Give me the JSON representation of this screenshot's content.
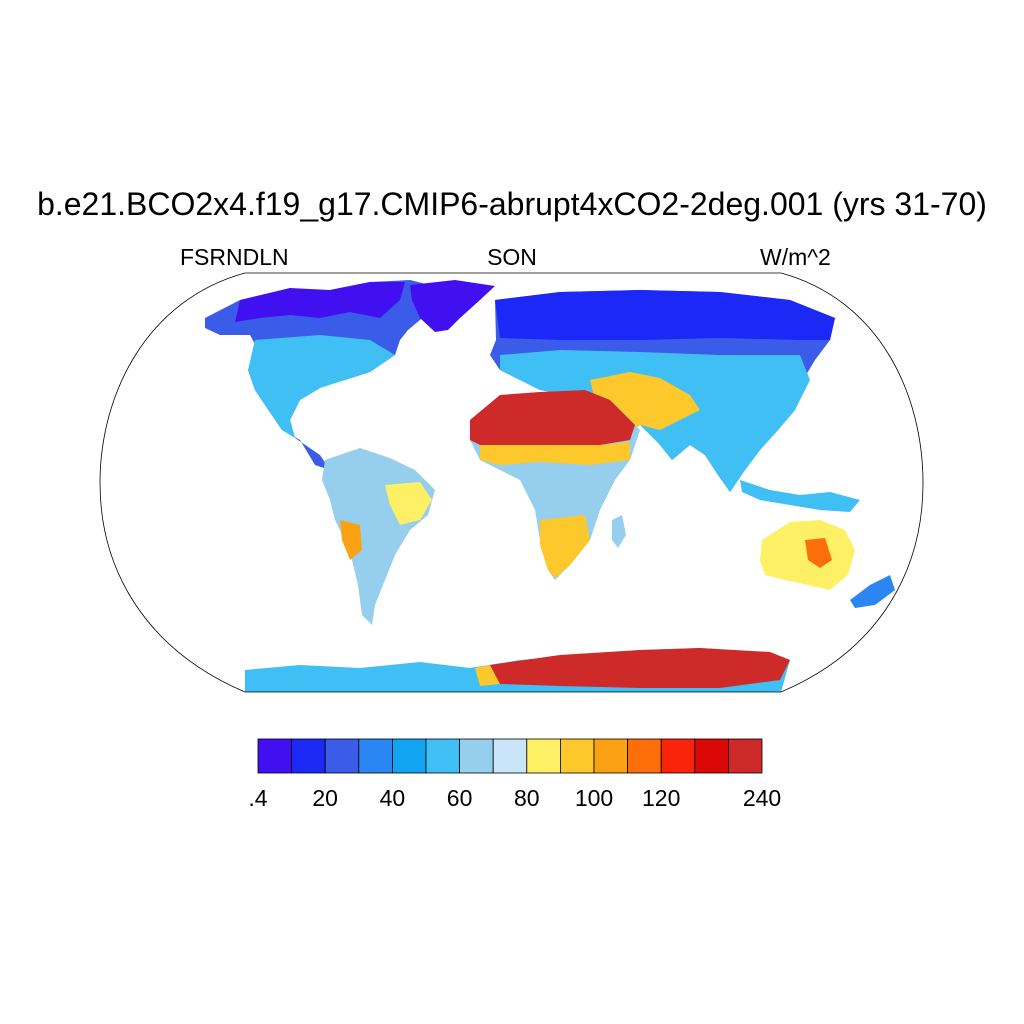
{
  "title": "b.e21.BCO2x4.f19_g17.CMIP6-abrupt4xCO2-2deg.001 (yrs 31-70)",
  "subtitle_left": "FSRNDLN",
  "subtitle_center": "SON",
  "subtitle_right": "W/m^2",
  "map": {
    "projection": "robinson",
    "field_domain": "land",
    "colormap": [
      "#4010f0",
      "#1c28f5",
      "#3a5ce8",
      "#2a86f2",
      "#12a4f3",
      "#40bff5",
      "#96cfee",
      "#c8e6f7",
      "#fef064",
      "#fcc82c",
      "#fba214",
      "#fb6e0a",
      "#f9240a",
      "#dc0808",
      "#cf2a2a"
    ],
    "colorbar_labels": [
      ".4",
      "20",
      "40",
      "60",
      "80",
      "100",
      "120",
      "240"
    ],
    "colorbar_label_boundaries": [
      0,
      2,
      4,
      6,
      8,
      10,
      12,
      15
    ]
  }
}
